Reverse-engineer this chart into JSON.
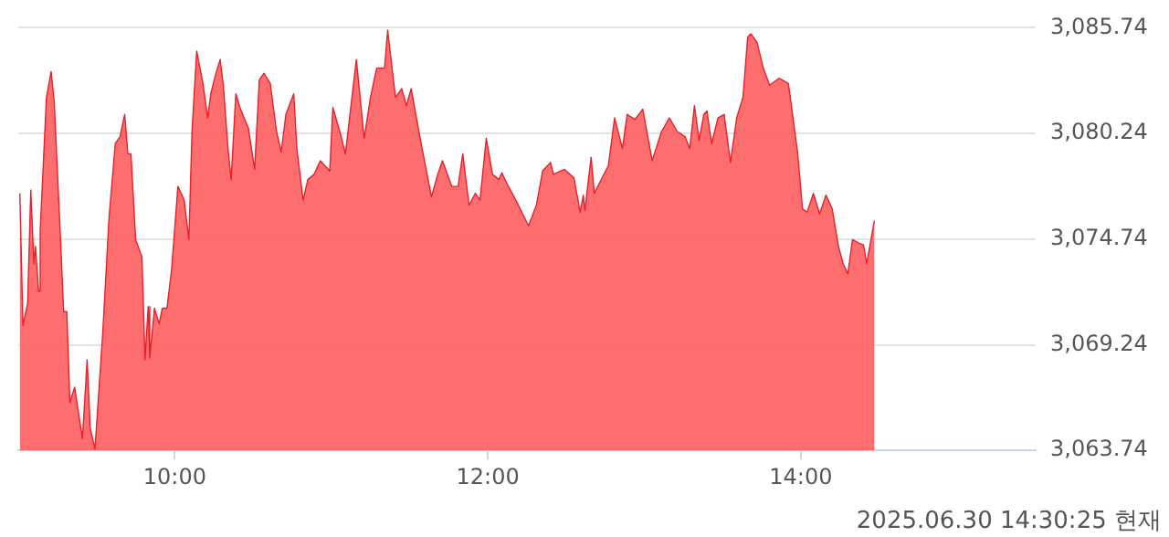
{
  "chart_data": {
    "type": "area",
    "annotations": [
      "2025.06.30 14:30:25 현재"
    ],
    "xlim": [
      9,
      15.5
    ],
    "xticks": [
      {
        "value": 10,
        "label": "10:00"
      },
      {
        "value": 12,
        "label": "12:00"
      },
      {
        "value": 14,
        "label": "14:00"
      }
    ],
    "ylim": [
      3063.74,
      3085.74
    ],
    "yticks": [
      {
        "value": 3063.74,
        "label": "3,063.74"
      },
      {
        "value": 3069.24,
        "label": "3,069.24"
      },
      {
        "value": 3074.74,
        "label": "3,074.74"
      },
      {
        "value": 3080.24,
        "label": "3,080.24"
      },
      {
        "value": 3085.74,
        "label": "3,085.74"
      }
    ],
    "grid": "y",
    "marker": "none",
    "x": [
      9.01,
      9.03,
      9.06,
      9.08,
      9.1,
      9.11,
      9.13,
      9.14,
      9.18,
      9.21,
      9.23,
      9.27,
      9.29,
      9.31,
      9.33,
      9.36,
      9.41,
      9.44,
      9.46,
      9.49,
      9.54,
      9.58,
      9.62,
      9.65,
      9.68,
      9.7,
      9.72,
      9.75,
      9.79,
      9.81,
      9.83,
      9.84,
      9.87,
      9.9,
      9.92,
      9.95,
      9.98,
      10.02,
      10.06,
      10.09,
      10.11,
      10.14,
      10.18,
      10.21,
      10.23,
      10.26,
      10.29,
      10.31,
      10.34,
      10.36,
      10.39,
      10.42,
      10.47,
      10.51,
      10.54,
      10.57,
      10.61,
      10.65,
      10.68,
      10.71,
      10.76,
      10.78,
      10.82,
      10.85,
      10.89,
      10.93,
      10.99,
      11.01,
      11.06,
      11.09,
      11.16,
      11.21,
      11.25,
      11.29,
      11.34,
      11.36,
      11.41,
      11.45,
      11.48,
      11.51,
      11.58,
      11.64,
      11.68,
      11.71,
      11.77,
      11.81,
      11.84,
      11.88,
      11.92,
      11.95,
      11.99,
      12.03,
      12.07,
      12.09,
      12.12,
      12.19,
      12.26,
      12.31,
      12.35,
      12.4,
      12.42,
      12.49,
      12.55,
      12.59,
      12.61,
      12.62,
      12.66,
      12.68,
      12.73,
      12.77,
      12.81,
      12.86,
      12.89,
      12.94,
      12.99,
      13.05,
      13.11,
      13.16,
      13.21,
      13.26,
      13.29,
      13.32,
      13.35,
      13.38,
      13.4,
      13.43,
      13.47,
      13.51,
      13.55,
      13.59,
      13.63,
      13.66,
      13.68,
      13.72,
      13.76,
      13.8,
      13.86,
      13.92,
      13.95,
      13.98,
      14.01,
      14.04,
      14.08,
      14.12,
      14.16,
      14.2,
      14.24,
      14.27,
      14.3,
      14.33,
      14.37,
      14.4,
      14.42,
      14.47
    ],
    "series": [
      {
        "color": "#ff5e5e",
        "values": [
          3077.12,
          3070.25,
          3071.41,
          3077.3,
          3073.46,
          3074.36,
          3072.03,
          3075.16,
          3082.12,
          3083.46,
          3081.86,
          3074.71,
          3070.96,
          3070.96,
          3066.23,
          3067.03,
          3064.36,
          3068.46,
          3064.89,
          3063.8,
          3069.89,
          3075.87,
          3079.71,
          3080.07,
          3081.23,
          3079.18,
          3079.18,
          3074.71,
          3073.82,
          3068.46,
          3071.23,
          3068.55,
          3071.14,
          3070.34,
          3071.14,
          3071.14,
          3073.19,
          3077.48,
          3076.77,
          3074.71,
          3080.34,
          3084.53,
          3082.84,
          3081.05,
          3082.3,
          3083.28,
          3084.09,
          3082.75,
          3079.45,
          3077.84,
          3082.3,
          3081.5,
          3080.52,
          3078.37,
          3083.02,
          3083.37,
          3082.84,
          3080.34,
          3079.27,
          3081.23,
          3082.3,
          3079.45,
          3076.77,
          3077.84,
          3078.11,
          3078.82,
          3078.28,
          3081.59,
          3080.16,
          3079.18,
          3084.09,
          3079.98,
          3082.12,
          3083.64,
          3083.64,
          3085.61,
          3082.12,
          3082.57,
          3081.68,
          3082.57,
          3079.45,
          3076.94,
          3078.11,
          3078.82,
          3077.48,
          3077.48,
          3079.18,
          3076.5,
          3077.12,
          3076.77,
          3079.98,
          3078.11,
          3077.84,
          3078.19,
          3077.66,
          3076.59,
          3075.43,
          3076.5,
          3078.28,
          3078.73,
          3078.11,
          3078.37,
          3077.93,
          3076.14,
          3077.03,
          3076.23,
          3079.0,
          3077.12,
          3077.93,
          3078.55,
          3081.05,
          3079.45,
          3081.23,
          3080.96,
          3081.5,
          3078.82,
          3080.34,
          3081.05,
          3080.34,
          3080.07,
          3079.45,
          3081.68,
          3079.89,
          3081.23,
          3081.41,
          3079.71,
          3081.05,
          3081.23,
          3078.73,
          3081.05,
          3082.12,
          3085.25,
          3085.43,
          3084.98,
          3083.64,
          3082.75,
          3083.11,
          3082.84,
          3081.05,
          3079.18,
          3076.32,
          3076.14,
          3077.12,
          3076.05,
          3077.03,
          3076.32,
          3074.36,
          3073.46,
          3072.93,
          3074.71,
          3074.53,
          3074.44,
          3073.46,
          3075.7
        ]
      }
    ]
  }
}
